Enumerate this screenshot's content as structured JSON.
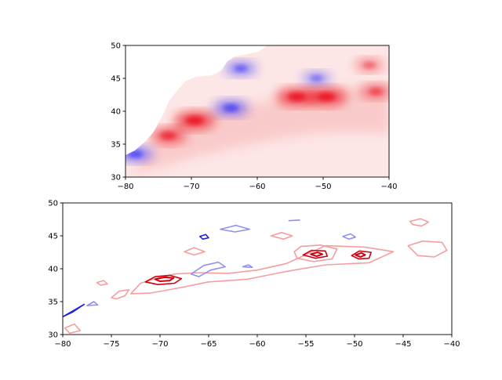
{
  "chart_data": [
    {
      "type": "heatmap",
      "title": "",
      "xlabel": "",
      "ylabel": "",
      "xlim": [
        -80,
        -40
      ],
      "ylim": [
        30,
        50
      ],
      "x_ticks": [
        -80,
        -70,
        -60,
        -50,
        -40
      ],
      "y_ticks": [
        30,
        35,
        40,
        45,
        50
      ],
      "x_tick_labels": [
        "−80",
        "−70",
        "−60",
        "−50",
        "−40"
      ],
      "y_tick_labels": [
        "30",
        "35",
        "40",
        "45",
        "50"
      ],
      "colormap": "bwr",
      "colors": {
        "positive": "#e8000b",
        "negative": "#1a1aff",
        "zero": "#ffffff"
      },
      "land_mask": true,
      "features": [
        {
          "kind": "positive",
          "lon": -69.5,
          "lat": 38.6,
          "strength": 0.9
        },
        {
          "kind": "positive",
          "lon": -73.5,
          "lat": 36.3,
          "strength": 0.75
        },
        {
          "kind": "positive",
          "lon": -54.0,
          "lat": 42.2,
          "strength": 0.9
        },
        {
          "kind": "positive",
          "lon": -49.5,
          "lat": 42.2,
          "strength": 0.9
        },
        {
          "kind": "positive",
          "lon": -42.0,
          "lat": 43.0,
          "strength": 0.6
        },
        {
          "kind": "positive",
          "lon": -43.0,
          "lat": 47.0,
          "strength": 0.5
        },
        {
          "kind": "negative",
          "lon": -64.0,
          "lat": 40.5,
          "strength": 0.7
        },
        {
          "kind": "negative",
          "lon": -62.5,
          "lat": 46.5,
          "strength": 0.6
        },
        {
          "kind": "negative",
          "lon": -51.0,
          "lat": 45.0,
          "strength": 0.5
        },
        {
          "kind": "negative",
          "lon": -78.5,
          "lat": 33.5,
          "strength": 0.7
        }
      ]
    },
    {
      "type": "contour",
      "title": "",
      "xlabel": "",
      "ylabel": "",
      "xlim": [
        -80,
        -40
      ],
      "ylim": [
        30,
        50
      ],
      "x_ticks": [
        -80,
        -75,
        -70,
        -65,
        -60,
        -55,
        -50,
        -45,
        -40
      ],
      "y_ticks": [
        30,
        35,
        40,
        45,
        50
      ],
      "x_tick_labels": [
        "−80",
        "−75",
        "−70",
        "−65",
        "−60",
        "−55",
        "−50",
        "−45",
        "−40"
      ],
      "y_tick_labels": [
        "30",
        "35",
        "40",
        "45",
        "50"
      ],
      "colors": {
        "positive_strong": "#d00010",
        "positive_weak": "#f59ea0",
        "negative_strong": "#2020e0",
        "negative_weak": "#9090f0"
      },
      "contours": [
        {
          "kind": "positive",
          "level": 1,
          "points": [
            [
              -72,
              37.8
            ],
            [
              -70.5,
              38.5
            ],
            [
              -68.5,
              39.2
            ],
            [
              -66,
              39.4
            ],
            [
              -63,
              39.3
            ],
            [
              -60,
              39.8
            ],
            [
              -57,
              40.8
            ],
            [
              -53,
              43.5
            ],
            [
              -49,
              43.3
            ],
            [
              -46,
              42.6
            ],
            [
              -48.5,
              40.9
            ],
            [
              -53,
              40.6
            ],
            [
              -57,
              39.6
            ],
            [
              -61,
              38.4
            ],
            [
              -65,
              38.0
            ],
            [
              -68,
              37.1
            ],
            [
              -71,
              36.3
            ],
            [
              -73,
              36.2
            ]
          ]
        },
        {
          "kind": "positive",
          "level": 2,
          "points": [
            [
              -71.5,
              38.0
            ],
            [
              -70.5,
              38.8
            ],
            [
              -69,
              39.0
            ],
            [
              -67.8,
              38.5
            ],
            [
              -68.5,
              37.8
            ],
            [
              -70.2,
              37.6
            ]
          ]
        },
        {
          "kind": "positive",
          "level": 3,
          "points": [
            [
              -70.5,
              38.4
            ],
            [
              -69.5,
              38.7
            ],
            [
              -68.6,
              38.6
            ],
            [
              -69.0,
              38.2
            ],
            [
              -70.0,
              38.1
            ]
          ]
        },
        {
          "kind": "positive",
          "level": 1,
          "points": [
            [
              -75,
              35.6
            ],
            [
              -74.2,
              36.6
            ],
            [
              -73.2,
              36.8
            ],
            [
              -73.6,
              35.9
            ],
            [
              -74.5,
              35.4
            ]
          ]
        },
        {
          "kind": "positive",
          "level": 1,
          "points": [
            [
              -56.2,
              42.6
            ],
            [
              -55.5,
              43.4
            ],
            [
              -53.5,
              43.6
            ],
            [
              -51.8,
              43.0
            ],
            [
              -52.3,
              41.5
            ],
            [
              -54.2,
              41.1
            ],
            [
              -55.9,
              41.6
            ]
          ]
        },
        {
          "kind": "positive",
          "level": 2,
          "points": [
            [
              -55.3,
              42.1
            ],
            [
              -54.4,
              42.8
            ],
            [
              -53.0,
              42.7
            ],
            [
              -52.8,
              41.9
            ],
            [
              -54.0,
              41.6
            ]
          ]
        },
        {
          "kind": "positive",
          "level": 3,
          "points": [
            [
              -54.5,
              42.2
            ],
            [
              -53.8,
              42.5
            ],
            [
              -53.3,
              42.2
            ],
            [
              -53.9,
              41.9
            ]
          ]
        },
        {
          "kind": "positive",
          "level": 2,
          "points": [
            [
              -50.3,
              42.0
            ],
            [
              -49.5,
              42.7
            ],
            [
              -48.3,
              42.5
            ],
            [
              -48.5,
              41.6
            ],
            [
              -49.6,
              41.5
            ]
          ]
        },
        {
          "kind": "positive",
          "level": 3,
          "points": [
            [
              -49.9,
              42.1
            ],
            [
              -49.3,
              42.4
            ],
            [
              -48.9,
              42.1
            ],
            [
              -49.4,
              41.8
            ]
          ]
        },
        {
          "kind": "positive",
          "level": 1,
          "points": [
            [
              -44.5,
              43.5
            ],
            [
              -43,
              44.2
            ],
            [
              -41,
              44.0
            ],
            [
              -40.5,
              42.8
            ],
            [
              -41.8,
              41.8
            ],
            [
              -43.5,
              42.0
            ]
          ]
        },
        {
          "kind": "positive",
          "level": 1,
          "points": [
            [
              -44.3,
              47.2
            ],
            [
              -43.2,
              47.6
            ],
            [
              -42.4,
              47.1
            ],
            [
              -43.1,
              46.5
            ],
            [
              -44.0,
              46.7
            ]
          ]
        },
        {
          "kind": "positive",
          "level": 1,
          "points": [
            [
              -58.6,
              45.0
            ],
            [
              -57.5,
              45.5
            ],
            [
              -56.4,
              45.0
            ],
            [
              -57.3,
              44.5
            ]
          ]
        },
        {
          "kind": "positive",
          "level": 1,
          "points": [
            [
              -67.5,
              42.6
            ],
            [
              -66.5,
              43.2
            ],
            [
              -65.4,
              42.6
            ],
            [
              -66.5,
              42.1
            ]
          ]
        },
        {
          "kind": "positive",
          "level": 1,
          "points": [
            [
              -79.8,
              31.0
            ],
            [
              -78.8,
              31.6
            ],
            [
              -78.2,
              30.6
            ],
            [
              -79.3,
              30.2
            ]
          ]
        },
        {
          "kind": "positive",
          "level": 1,
          "points": [
            [
              -76.5,
              37.9
            ],
            [
              -75.8,
              38.2
            ],
            [
              -75.4,
              37.7
            ],
            [
              -76.1,
              37.5
            ]
          ]
        },
        {
          "kind": "negative",
          "level": 1,
          "points": [
            [
              -63.8,
              46.0
            ],
            [
              -62.2,
              46.6
            ],
            [
              -60.8,
              46.0
            ],
            [
              -62.3,
              45.6
            ]
          ]
        },
        {
          "kind": "negative",
          "level": 1,
          "points": [
            [
              -51.2,
              44.9
            ],
            [
              -50.4,
              45.3
            ],
            [
              -49.9,
              44.8
            ],
            [
              -50.6,
              44.5
            ]
          ]
        },
        {
          "kind": "negative",
          "level": 1,
          "points": [
            [
              -66.8,
              39.2
            ],
            [
              -65.5,
              40.5
            ],
            [
              -64.0,
              41.0
            ],
            [
              -63.3,
              40.3
            ],
            [
              -64.8,
              39.8
            ],
            [
              -66.0,
              38.8
            ]
          ]
        },
        {
          "kind": "negative",
          "level": 2,
          "points": [
            [
              -65.9,
              44.9
            ],
            [
              -65.3,
              45.2
            ],
            [
              -65.0,
              44.7
            ],
            [
              -65.6,
              44.5
            ]
          ]
        },
        {
          "kind": "negative",
          "level": 2,
          "points": [
            [
              -80,
              32.7
            ],
            [
              -79,
              33.4
            ],
            [
              -78.4,
              34.0
            ],
            [
              -77.8,
              34.6
            ]
          ]
        },
        {
          "kind": "negative",
          "level": 1,
          "points": [
            [
              -77.5,
              34.4
            ],
            [
              -76.8,
              35.0
            ],
            [
              -76.4,
              34.5
            ]
          ]
        },
        {
          "kind": "negative",
          "level": 1,
          "points": [
            [
              -56.8,
              47.3
            ],
            [
              -55.6,
              47.4
            ]
          ]
        },
        {
          "kind": "negative",
          "level": 1,
          "points": [
            [
              -61.5,
              40.3
            ],
            [
              -60.9,
              40.6
            ],
            [
              -60.5,
              40.2
            ]
          ]
        }
      ]
    }
  ]
}
